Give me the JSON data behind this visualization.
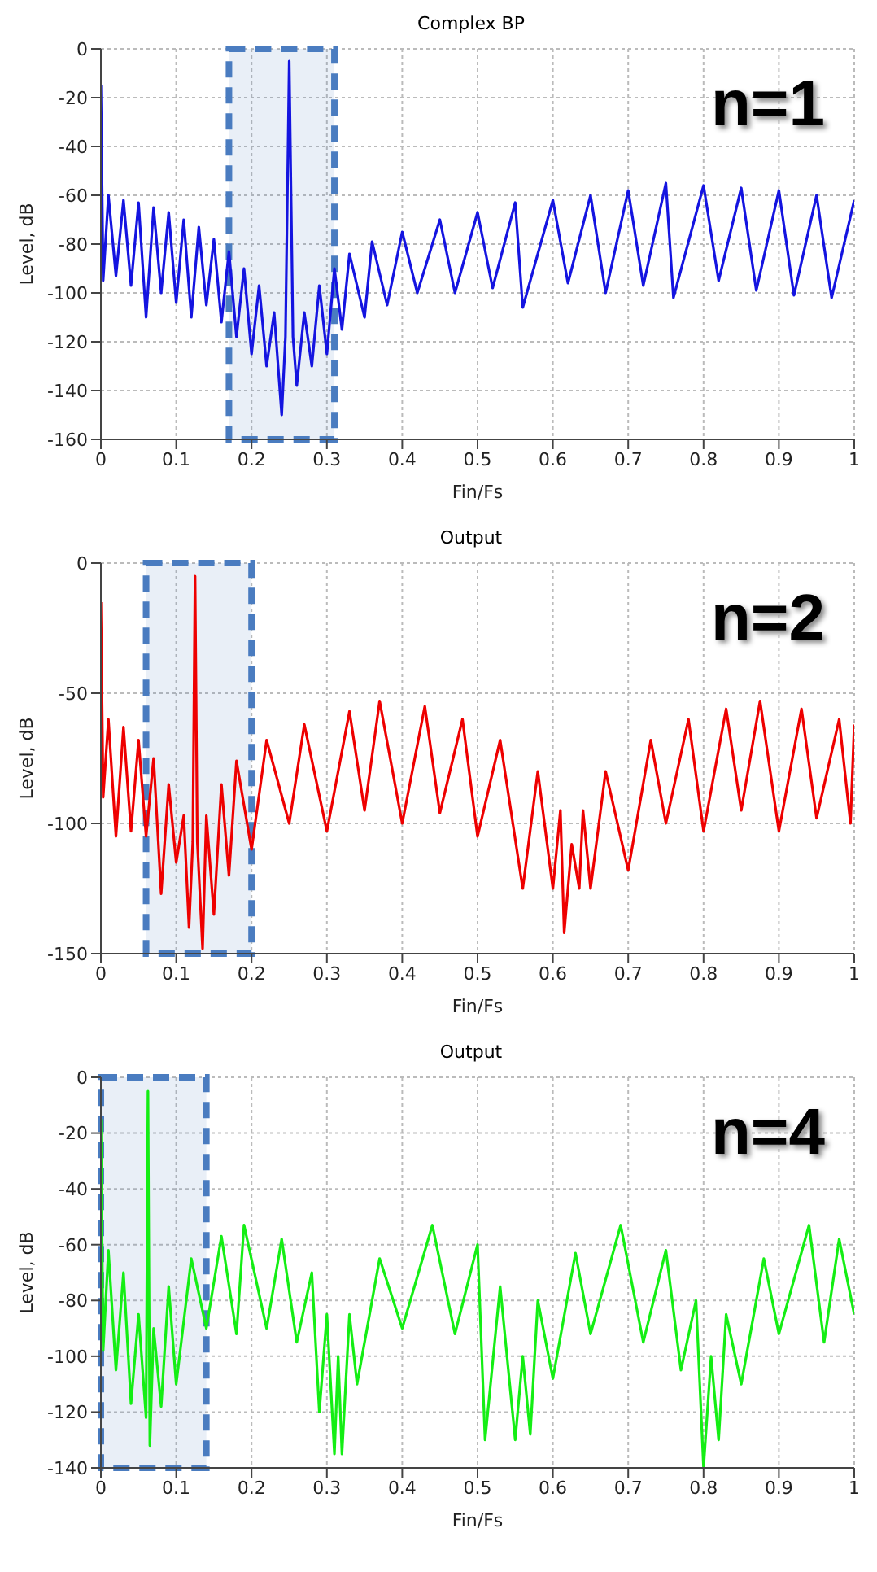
{
  "chart_data": [
    {
      "type": "line",
      "title": "Complex BP",
      "xlabel": "Fin/Fs",
      "ylabel": "Level, dB",
      "annotations": [
        "n=1"
      ],
      "color": "#1414e0",
      "x": [
        0,
        0.003,
        0.01,
        0.02,
        0.03,
        0.04,
        0.05,
        0.06,
        0.07,
        0.08,
        0.09,
        0.1,
        0.11,
        0.12,
        0.13,
        0.14,
        0.15,
        0.16,
        0.17,
        0.18,
        0.19,
        0.2,
        0.21,
        0.22,
        0.23,
        0.24,
        0.245,
        0.25,
        0.255,
        0.26,
        0.27,
        0.28,
        0.29,
        0.3,
        0.31,
        0.32,
        0.33,
        0.35,
        0.36,
        0.38,
        0.4,
        0.42,
        0.45,
        0.47,
        0.5,
        0.52,
        0.55,
        0.56,
        0.6,
        0.62,
        0.65,
        0.67,
        0.7,
        0.72,
        0.75,
        0.76,
        0.8,
        0.82,
        0.85,
        0.87,
        0.9,
        0.92,
        0.95,
        0.97,
        1
      ],
      "values": [
        -15,
        -95,
        -60,
        -93,
        -62,
        -97,
        -63,
        -110,
        -65,
        -100,
        -67,
        -104,
        -70,
        -110,
        -73,
        -105,
        -78,
        -112,
        -83,
        -118,
        -90,
        -125,
        -97,
        -130,
        -108,
        -150,
        -118,
        -5,
        -118,
        -138,
        -108,
        -130,
        -97,
        -125,
        -90,
        -115,
        -84,
        -110,
        -79,
        -105,
        -75,
        -100,
        -70,
        -100,
        -67,
        -98,
        -63,
        -106,
        -62,
        -96,
        -60,
        -100,
        -58,
        -97,
        -55,
        -102,
        -56,
        -95,
        -57,
        -99,
        -58,
        -101,
        -60,
        -102,
        -62
      ],
      "xlim": [
        0,
        1
      ],
      "xticks": [
        0,
        0.1,
        0.2,
        0.3,
        0.4,
        0.5,
        0.6,
        0.7,
        0.8,
        0.9,
        1
      ],
      "ylim": [
        -160,
        0
      ],
      "yticks": [
        -160,
        -140,
        -120,
        -100,
        -80,
        -60,
        -40,
        -20,
        0
      ],
      "grid": true,
      "bands": [
        {
          "axis": "x",
          "from": 0.17,
          "to": 0.31,
          "color": "#4a7cc0"
        }
      ]
    },
    {
      "type": "line",
      "title": "Output",
      "xlabel": "Fin/Fs",
      "ylabel": "Level, dB",
      "annotations": [
        "n=2"
      ],
      "color": "#ee0000",
      "x": [
        0,
        0.003,
        0.01,
        0.02,
        0.03,
        0.04,
        0.05,
        0.06,
        0.07,
        0.08,
        0.09,
        0.1,
        0.11,
        0.117,
        0.122,
        0.125,
        0.128,
        0.135,
        0.14,
        0.15,
        0.16,
        0.17,
        0.18,
        0.2,
        0.22,
        0.25,
        0.27,
        0.3,
        0.33,
        0.35,
        0.37,
        0.4,
        0.43,
        0.45,
        0.48,
        0.5,
        0.53,
        0.56,
        0.58,
        0.6,
        0.61,
        0.615,
        0.625,
        0.635,
        0.64,
        0.65,
        0.67,
        0.7,
        0.73,
        0.75,
        0.78,
        0.8,
        0.83,
        0.85,
        0.875,
        0.9,
        0.93,
        0.95,
        0.98,
        0.995,
        1
      ],
      "values": [
        -15,
        -90,
        -60,
        -105,
        -63,
        -103,
        -68,
        -105,
        -75,
        -127,
        -85,
        -115,
        -97,
        -140,
        -107,
        -5,
        -107,
        -148,
        -97,
        -135,
        -85,
        -120,
        -76,
        -110,
        -68,
        -100,
        -62,
        -103,
        -57,
        -95,
        -53,
        -100,
        -55,
        -96,
        -60,
        -105,
        -68,
        -125,
        -80,
        -125,
        -95,
        -142,
        -108,
        -125,
        -95,
        -125,
        -80,
        -118,
        -68,
        -100,
        -60,
        -103,
        -56,
        -95,
        -53,
        -103,
        -56,
        -98,
        -60,
        -100,
        -62
      ],
      "xlim": [
        0,
        1
      ],
      "xticks": [
        0,
        0.1,
        0.2,
        0.3,
        0.4,
        0.5,
        0.6,
        0.7,
        0.8,
        0.9,
        1
      ],
      "ylim": [
        -150,
        0
      ],
      "yticks": [
        -150,
        -100,
        -50,
        0
      ],
      "grid": true,
      "bands": [
        {
          "axis": "x",
          "from": 0.06,
          "to": 0.2,
          "color": "#4a7cc0"
        }
      ]
    },
    {
      "type": "line",
      "title": "Output",
      "xlabel": "Fin/Fs",
      "ylabel": "Level, dB",
      "annotations": [
        "n=4"
      ],
      "color": "#14ee14",
      "x": [
        0,
        0.003,
        0.01,
        0.02,
        0.03,
        0.04,
        0.05,
        0.06,
        0.0625,
        0.065,
        0.07,
        0.08,
        0.09,
        0.1,
        0.12,
        0.14,
        0.16,
        0.18,
        0.19,
        0.22,
        0.24,
        0.26,
        0.28,
        0.29,
        0.3,
        0.31,
        0.315,
        0.32,
        0.33,
        0.34,
        0.37,
        0.4,
        0.44,
        0.47,
        0.5,
        0.51,
        0.53,
        0.55,
        0.56,
        0.57,
        0.58,
        0.6,
        0.63,
        0.65,
        0.69,
        0.72,
        0.75,
        0.77,
        0.79,
        0.8,
        0.81,
        0.82,
        0.83,
        0.85,
        0.88,
        0.9,
        0.94,
        0.96,
        0.98,
        1
      ],
      "values": [
        -15,
        -98,
        -62,
        -105,
        -70,
        -117,
        -85,
        -122,
        -5,
        -132,
        -90,
        -118,
        -75,
        -110,
        -65,
        -90,
        -57,
        -92,
        -53,
        -90,
        -58,
        -95,
        -70,
        -120,
        -85,
        -135,
        -100,
        -135,
        -85,
        -110,
        -65,
        -90,
        -53,
        -92,
        -60,
        -130,
        -75,
        -130,
        -100,
        -128,
        -80,
        -108,
        -63,
        -92,
        -53,
        -95,
        -62,
        -105,
        -80,
        -140,
        -100,
        -130,
        -85,
        -110,
        -65,
        -92,
        -53,
        -95,
        -58,
        -85
      ],
      "xlim": [
        0,
        1
      ],
      "xticks": [
        0,
        0.1,
        0.2,
        0.3,
        0.4,
        0.5,
        0.6,
        0.7,
        0.8,
        0.9,
        1
      ],
      "ylim": [
        -140,
        0
      ],
      "yticks": [
        -140,
        -120,
        -100,
        -80,
        -60,
        -40,
        -20,
        0
      ],
      "grid": true,
      "bands": [
        {
          "axis": "x",
          "from": 0,
          "to": 0.14,
          "color": "#4a7cc0"
        }
      ]
    }
  ]
}
